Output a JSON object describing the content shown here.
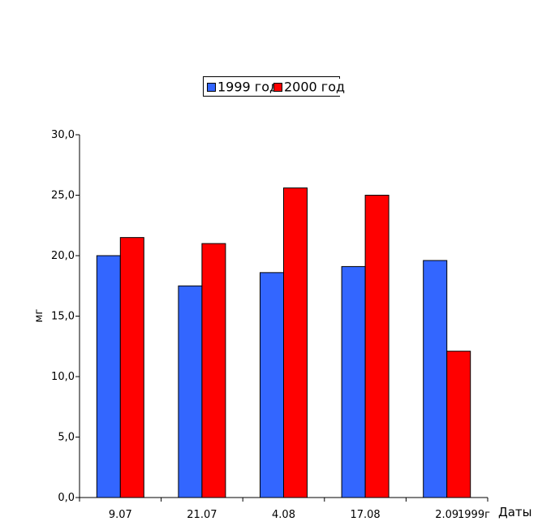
{
  "chart_data": {
    "type": "bar",
    "categories": [
      "9.07",
      "21.07",
      "4.08",
      "17.08",
      "2.09"
    ],
    "series": [
      {
        "name": "1999 год",
        "values": [
          20.0,
          17.5,
          18.6,
          19.1,
          19.6
        ],
        "color": "#3366ff"
      },
      {
        "name": "2000 год",
        "values": [
          21.5,
          21.0,
          25.6,
          25.0,
          12.1
        ],
        "color": "#ff0000"
      }
    ],
    "ylabel": "мг",
    "xlabel": "Даты",
    "x_annotation": "1999г",
    "ylim": [
      0,
      30
    ],
    "yticks": [
      "0,0",
      "5,0",
      "10,0",
      "15,0",
      "20,0",
      "25,0",
      "30,0"
    ],
    "legend_position": "top",
    "grid": false
  }
}
